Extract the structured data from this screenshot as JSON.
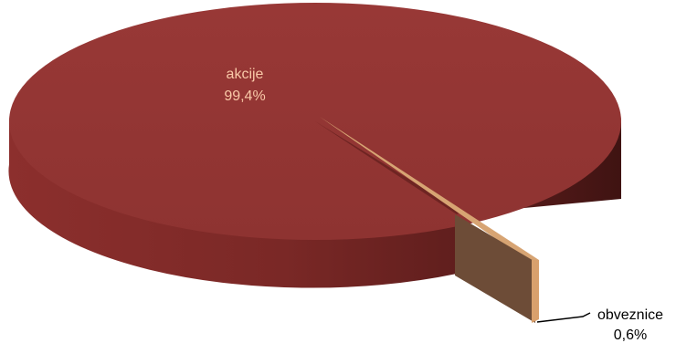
{
  "chart_data": {
    "type": "pie",
    "style": "3d-exploded",
    "title": "",
    "slices": [
      {
        "label": "akcije",
        "value": 99.4,
        "value_label": "99,4%",
        "color": "#943634",
        "label_color": "#f9c9a8"
      },
      {
        "label": "obveznice",
        "value": 0.6,
        "value_label": "0,6%",
        "color": "#c4955f",
        "label_color": "#000000"
      }
    ],
    "legend": "none"
  }
}
